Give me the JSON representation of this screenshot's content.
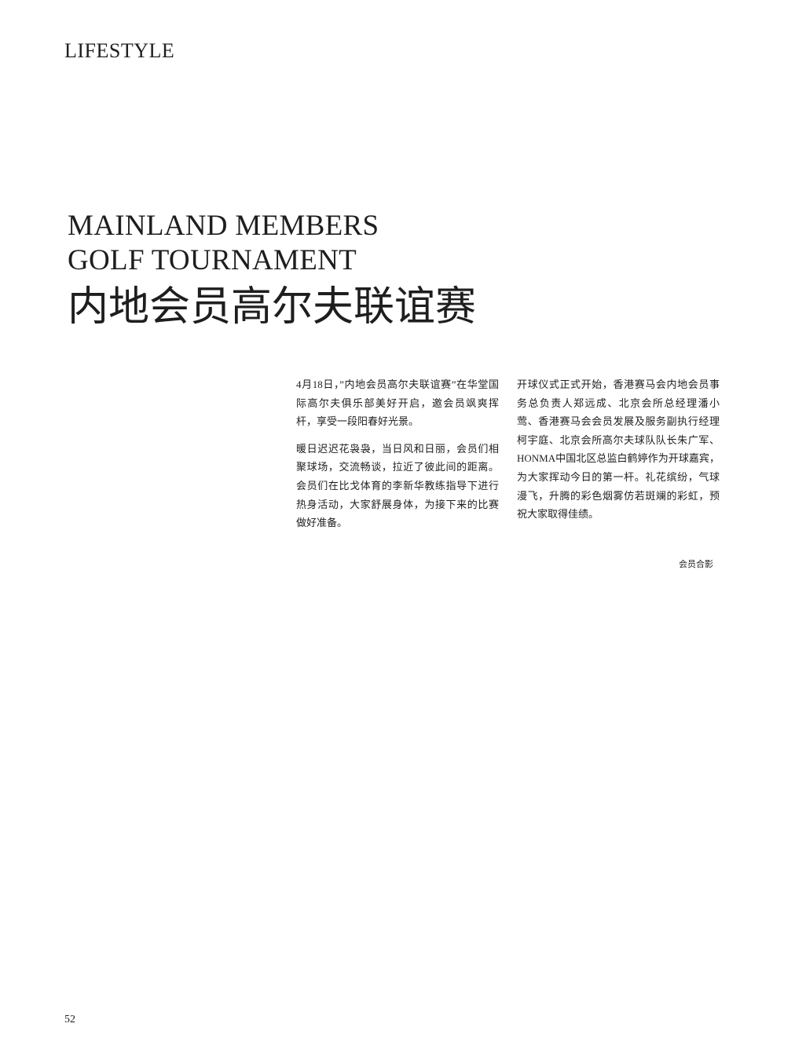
{
  "page": {
    "section_label": "LIFESTYLE",
    "title_en_line1": "MAINLAND MEMBERS",
    "title_en_line2": "GOLF TOURNAMENT",
    "title_zh": "内地会员高尔夫联谊赛",
    "page_number": "52"
  },
  "article": {
    "column1": [
      "4月18日，”内地会员高尔夫联谊赛”在华堂国际高尔夫俱乐部美好开启，邀会员飒爽挥杆，享受一段阳春好光景。",
      "暖日迟迟花袅袅，当日风和日丽，会员们相聚球场，交流畅谈，拉近了彼此间的距离。会员们在比戈体育的李新华教练指导下进行热身活动，大家舒展身体，为接下来的比赛做好准备。"
    ],
    "column2": [
      "开球仪式正式开始，香港赛马会内地会员事务总负责人郑远成、北京会所总经理潘小莺、香港赛马会会员发展及服务副执行经理柯宇庭、北京会所高尔夫球队队长朱广军、HONMA中国北区总监白鹤婷作为开球嘉宾，为大家挥动今日的第一杆。礼花缤纷，气球漫飞，升腾的彩色烟雾仿若斑斓的彩虹，预祝大家取得佳绩。"
    ],
    "caption": "会员合影"
  }
}
